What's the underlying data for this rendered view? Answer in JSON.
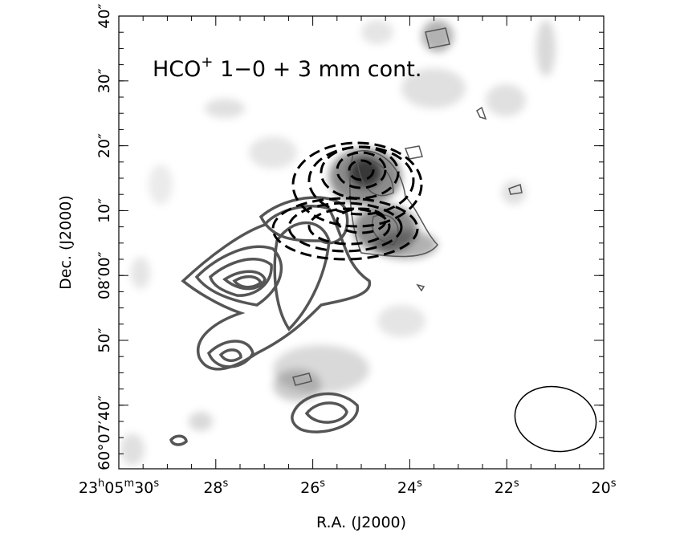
{
  "figure": {
    "annotation": [
      "HCO",
      "+",
      " 1−0 + 3 mm cont."
    ],
    "xlabel": "R.A. (J2000)",
    "ylabel": "Dec. (J2000)",
    "xticks": [
      [
        "23",
        "h",
        "05",
        "m",
        "30",
        "s"
      ],
      [
        "28",
        "s"
      ],
      [
        "26",
        "s"
      ],
      [
        "24",
        "s"
      ],
      [
        "22",
        "s"
      ],
      [
        "20",
        "s"
      ]
    ],
    "yticks": [
      "40″",
      "30″",
      "20″",
      "10″",
      "08′00″",
      "50″",
      "60°07′40″"
    ]
  }
}
